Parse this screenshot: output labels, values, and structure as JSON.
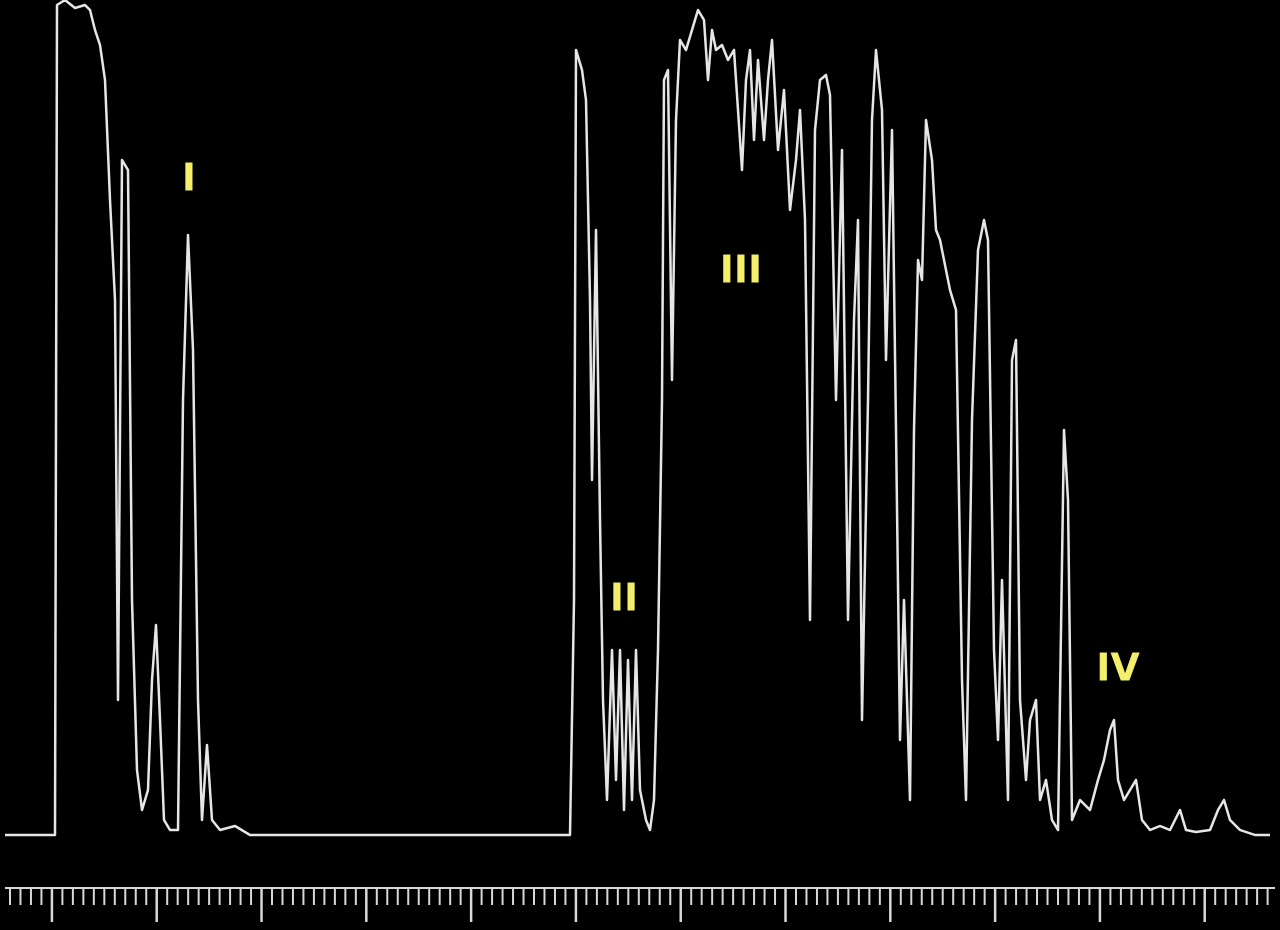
{
  "annotations": [
    "I",
    "II",
    "III",
    "IV"
  ]
}
